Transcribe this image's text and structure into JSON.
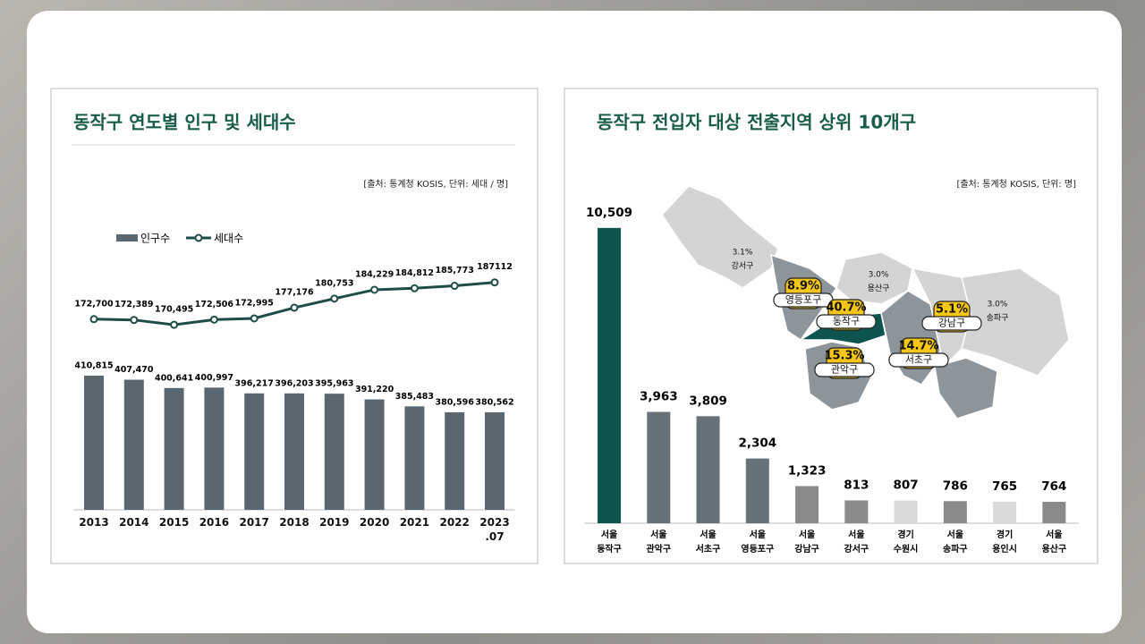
{
  "chart_data": [
    {
      "type": "bar_line",
      "title": "동작구 연도별 인구 및 세대수",
      "source": "[출처: 통계청 KOSIS, 단위: 세대 / 명]",
      "categories": [
        "2013",
        "2014",
        "2015",
        "2016",
        "2017",
        "2018",
        "2019",
        "2020",
        "2021",
        "2022",
        "2023.07"
      ],
      "series": [
        {
          "name": "인구수",
          "type": "bar",
          "color": "#5b6770",
          "values": [
            410815,
            407470,
            400641,
            400997,
            396217,
            396203,
            395963,
            391220,
            385483,
            380596,
            380562
          ],
          "value_labels": [
            "410,815",
            "407,470",
            "400,641",
            "400,997",
            "396,217",
            "396,203",
            "395,963",
            "391,220",
            "385,483",
            "380,596",
            "380,562"
          ]
        },
        {
          "name": "세대수",
          "type": "line",
          "axis": "y2",
          "color": "#1e4d48",
          "values": [
            172700,
            172389,
            170495,
            172506,
            172995,
            177176,
            180753,
            184229,
            184812,
            185773,
            187112
          ],
          "value_labels": [
            "172,700",
            "172,389",
            "170,495",
            "172,506",
            "172,995",
            "177,176",
            "180,753",
            "184,229",
            "184,812",
            "185,773",
            "187112"
          ]
        }
      ],
      "ylim": [
        300000,
        450000
      ],
      "y2lim": [
        160000,
        200000
      ]
    },
    {
      "type": "bar",
      "title": "동작구 전입자 대상 전출지역 상위 10개구",
      "source": "[출처: 통계청 KOSIS, 단위: 명]",
      "categories": [
        [
          "서울",
          "동작구"
        ],
        [
          "서울",
          "관악구"
        ],
        [
          "서울",
          "서초구"
        ],
        [
          "서울",
          "영등포구"
        ],
        [
          "서울",
          "강남구"
        ],
        [
          "서울",
          "강서구"
        ],
        [
          "경기",
          "수원시"
        ],
        [
          "서울",
          "송파구"
        ],
        [
          "경기",
          "용인시"
        ],
        [
          "서울",
          "용산구"
        ]
      ],
      "values": [
        10509,
        3963,
        3809,
        2304,
        1323,
        813,
        807,
        786,
        765,
        764
      ],
      "value_labels": [
        "10,509",
        "3,963",
        "3,809",
        "2,304",
        "1,323",
        "813",
        "807",
        "786",
        "765",
        "764"
      ],
      "colors": [
        "#0d544f",
        "#66717a",
        "#66717a",
        "#66717a",
        "#8a8a8a",
        "#8a8a8a",
        "#d9d9d9",
        "#8a8a8a",
        "#d9d9d9",
        "#8a8a8a"
      ],
      "ylim": [
        0,
        12000
      ],
      "map_regions": [
        {
          "name": "강서구",
          "value": 3.1,
          "label": "3.1%",
          "highlight": false
        },
        {
          "name": "영등포구",
          "value": 8.9,
          "label": "8.9%",
          "highlight": true
        },
        {
          "name": "용산구",
          "value": 3.0,
          "label": "3.0%",
          "highlight": false
        },
        {
          "name": "동작구",
          "value": 40.7,
          "label": "40.7%",
          "highlight": true
        },
        {
          "name": "강남구",
          "value": 5.1,
          "label": "5.1%",
          "highlight": true
        },
        {
          "name": "송파구",
          "value": 3.0,
          "label": "3.0%",
          "highlight": false
        },
        {
          "name": "관악구",
          "value": 15.3,
          "label": "15.3%",
          "highlight": true
        },
        {
          "name": "서초구",
          "value": 14.7,
          "label": "14.7%",
          "highlight": true
        }
      ]
    }
  ]
}
